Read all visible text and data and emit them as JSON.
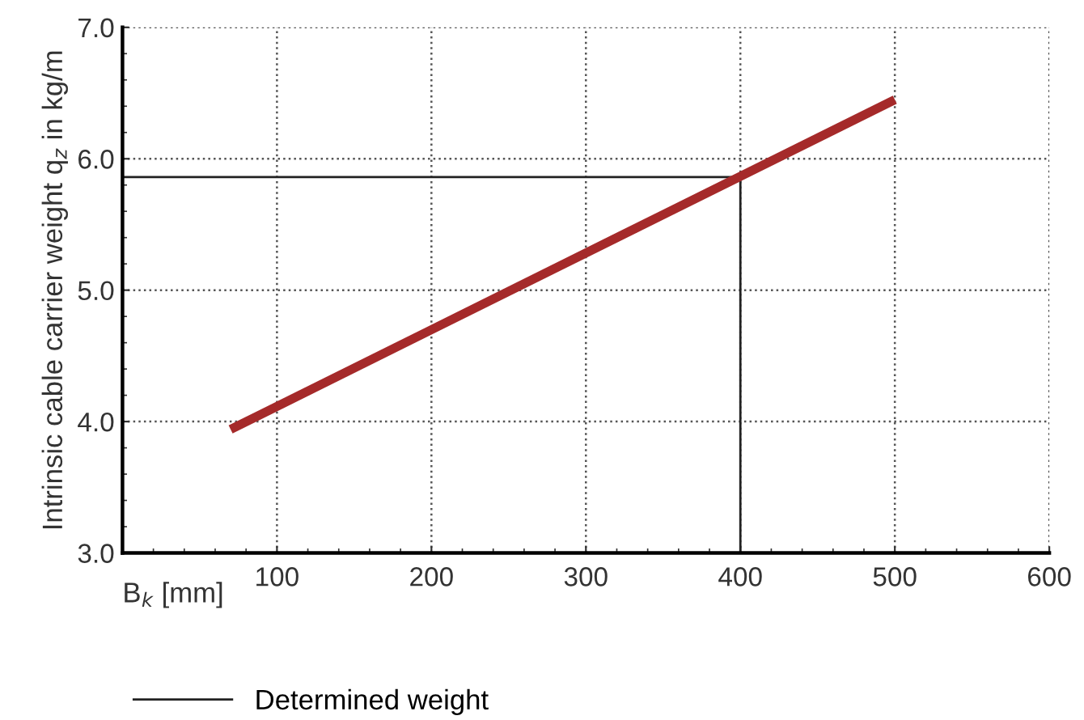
{
  "chart_data": {
    "type": "line",
    "xlabel": "B$_{k}$ [mm]",
    "ylabel": "Intrinsic cable carrier weight q$_{z}$ in kg/m",
    "series": [
      {
        "color": "#a52a2a",
        "x": [
          70,
          500
        ],
        "values": [
          3.94,
          6.45
        ]
      },
      {
        "name": "Determined weight",
        "color": "#222222",
        "x": [
          0,
          400,
          400
        ],
        "values": [
          5.86,
          5.86,
          3.0
        ]
      }
    ],
    "xlim": [
      0,
      600
    ],
    "ylim": [
      3.0,
      7.0
    ],
    "xticks": [
      {
        "value": 0,
        "label": null
      },
      100,
      200,
      300,
      400,
      500,
      600
    ],
    "yticks": [
      {
        "value": 3.0,
        "label": "3.0"
      },
      {
        "value": 4.0,
        "label": "4.0"
      },
      {
        "value": 5.0,
        "label": "5.0"
      },
      {
        "value": 6.0,
        "label": "6.0"
      },
      {
        "value": 7.0,
        "label": "7.0"
      }
    ],
    "grid": true,
    "legend": "bottom",
    "line_style": "solid",
    "marker": "none"
  }
}
